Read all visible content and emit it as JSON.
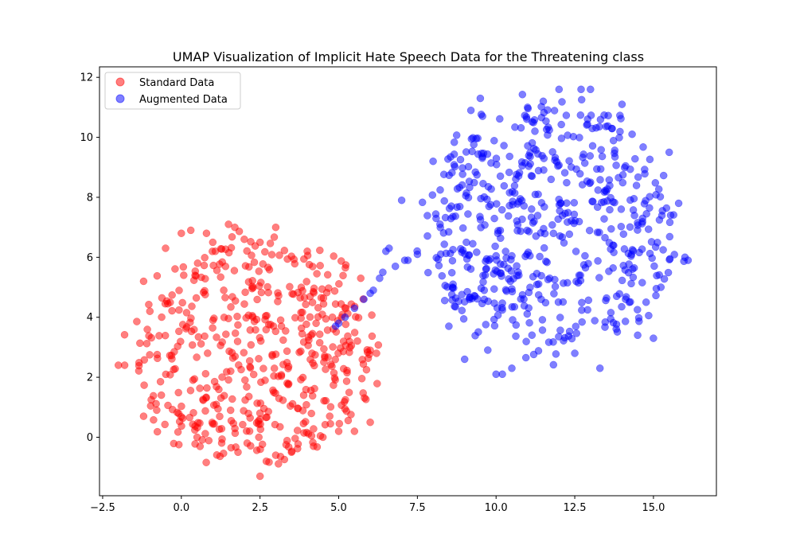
{
  "chart_data": {
    "type": "scatter",
    "title": "UMAP Visualization of Implicit Hate Speech Data for the Threatening class",
    "xlabel": "",
    "ylabel": "",
    "xlim": [
      -2.6,
      17.0
    ],
    "ylim": [
      -1.95,
      12.35
    ],
    "xticks": [
      -2.5,
      0.0,
      2.5,
      5.0,
      7.5,
      10.0,
      12.5,
      15.0
    ],
    "xtick_labels": [
      "−2.5",
      "0.0",
      "2.5",
      "5.0",
      "7.5",
      "10.0",
      "12.5",
      "15.0"
    ],
    "yticks": [
      0,
      2,
      4,
      6,
      8,
      10,
      12
    ],
    "ytick_labels": [
      "0",
      "2",
      "4",
      "6",
      "8",
      "10",
      "12"
    ],
    "grid": false,
    "legend_position": "top-left",
    "series": [
      {
        "name": "Standard Data",
        "color": "#ff0000",
        "alpha": 0.5,
        "count": 520,
        "center": [
          2.3,
          2.9
        ],
        "radius": [
          4.2,
          4.2
        ],
        "x": [
          -2.0,
          -1.8,
          -1.2,
          -1.2,
          -1.0,
          -0.5,
          0.0,
          0.3,
          0.5,
          0.8,
          1.0,
          1.5,
          1.7,
          1.8,
          2.0,
          2.5,
          2.5,
          2.7,
          3.0,
          3.0,
          3.5,
          4.0,
          4.2,
          4.5,
          4.8,
          5.0,
          5.5,
          5.7,
          6.0,
          6.0,
          6.2
        ],
        "y": [
          2.4,
          2.4,
          5.2,
          0.7,
          4.2,
          6.3,
          6.8,
          6.9,
          0.0,
          6.8,
          6.5,
          7.1,
          7.0,
          -0.5,
          6.6,
          -1.3,
          6.5,
          -0.8,
          7.0,
          -0.6,
          -0.5,
          6.2,
          -0.3,
          0.0,
          4.0,
          0.2,
          0.2,
          5.3,
          2.9,
          0.5,
          2.8
        ]
      },
      {
        "name": "Augmented Data",
        "color": "#0000ff",
        "alpha": 0.5,
        "count": 600,
        "center": [
          11.7,
          6.9
        ],
        "radius": [
          4.4,
          4.7
        ],
        "x": [
          4.9,
          5.0,
          5.5,
          6.0,
          6.3,
          6.5,
          7.0,
          7.2,
          7.5,
          8.0,
          8.5,
          9.0,
          9.2,
          9.5,
          10.0,
          10.2,
          10.5,
          11.0,
          11.5,
          12.0,
          12.5,
          12.7,
          13.0,
          13.3,
          14.0,
          14.5,
          15.0,
          15.5,
          15.8,
          16.0,
          16.1
        ],
        "y": [
          3.7,
          3.8,
          4.3,
          4.8,
          5.3,
          6.2,
          7.9,
          5.9,
          6.1,
          9.2,
          3.7,
          2.6,
          10.9,
          11.3,
          2.1,
          2.1,
          2.3,
          11.0,
          11.2,
          11.6,
          2.8,
          11.6,
          11.6,
          2.3,
          11.1,
          3.4,
          3.3,
          9.5,
          7.8,
          6.0,
          5.9
        ]
      }
    ]
  }
}
